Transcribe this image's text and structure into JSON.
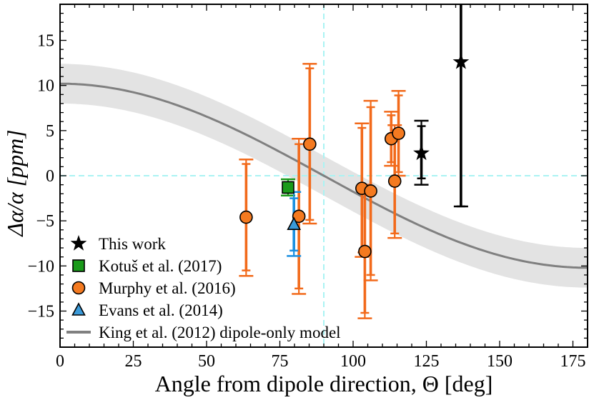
{
  "chart_data": {
    "type": "scatter",
    "xlabel": "Angle from dipole direction, Θ [deg]",
    "ylabel": "Δα/α [ppm]",
    "xlim": [
      0,
      180
    ],
    "ylim": [
      -19,
      19
    ],
    "xticks": [
      0,
      25,
      50,
      75,
      100,
      125,
      150,
      175
    ],
    "yticks": [
      -15,
      -10,
      -5,
      0,
      5,
      10,
      15
    ],
    "reference_lines": {
      "x": 90,
      "y": 0,
      "color": "#aaf3f3"
    },
    "dipole_model": {
      "name": "King et al. (2012) dipole-only model",
      "amplitude": 10.2,
      "band": 2.2,
      "color": "#808080",
      "band_color": "#e3e3e3"
    },
    "series": [
      {
        "name": "This work",
        "marker": "star",
        "color": "#000000",
        "points": [
          {
            "x": 123.3,
            "y": 2.5,
            "stat": [
              -0.3,
              5.5
            ],
            "tot": [
              -1.0,
              6.1
            ]
          },
          {
            "x": 136.8,
            "y": 12.6,
            "stat": [
              -3.4,
              19
            ],
            "tot": [
              -3.4,
              19
            ]
          }
        ]
      },
      {
        "name": "Kotuš et al. (2017)",
        "marker": "square",
        "color": "#1a9a1a",
        "points": [
          {
            "x": 77.8,
            "y": -1.3,
            "stat": [
              -1.9,
              -0.7
            ],
            "tot": [
              -2.2,
              -0.4
            ]
          }
        ]
      },
      {
        "name": "Murphy et al. (2016)",
        "marker": "circle",
        "color": "#f47a20",
        "points": [
          {
            "x": 63.5,
            "y": -4.6,
            "stat": [
              -10.5,
              1.3
            ],
            "tot": [
              -11.1,
              1.8
            ]
          },
          {
            "x": 81.5,
            "y": -4.5,
            "stat": [
              -12.5,
              3.5
            ],
            "tot": [
              -13.1,
              4.1
            ]
          },
          {
            "x": 85.2,
            "y": 3.5,
            "stat": [
              -4.9,
              11.9
            ],
            "tot": [
              -5.3,
              12.4
            ]
          },
          {
            "x": 103.0,
            "y": -1.4,
            "stat": [
              -8.5,
              5.3
            ],
            "tot": [
              -9.0,
              5.8
            ]
          },
          {
            "x": 104.0,
            "y": -8.4,
            "stat": [
              -15.2,
              -1.6
            ],
            "tot": [
              -15.8,
              -1.0
            ]
          },
          {
            "x": 106.0,
            "y": -1.7,
            "stat": [
              -11.0,
              7.6
            ],
            "tot": [
              -11.6,
              8.3
            ]
          },
          {
            "x": 113.0,
            "y": 4.1,
            "stat": [
              1.5,
              6.7
            ],
            "tot": [
              1.1,
              7.1
            ]
          },
          {
            "x": 114.2,
            "y": -0.6,
            "stat": [
              -6.4,
              5.1
            ],
            "tot": [
              -6.9,
              5.6
            ]
          },
          {
            "x": 115.5,
            "y": 4.7,
            "stat": [
              0.4,
              8.9
            ],
            "tot": [
              0.0,
              9.4
            ]
          }
        ]
      },
      {
        "name": "Evans et al. (2014)",
        "marker": "triangle",
        "color": "#3a9ad9",
        "points": [
          {
            "x": 79.8,
            "y": -5.4,
            "stat": [
              -8.3,
              -2.5
            ],
            "tot": [
              -8.9,
              -1.8
            ]
          }
        ]
      }
    ],
    "legend": {
      "position": "lower-left",
      "entries": [
        "This work",
        "Kotuš et al. (2017)",
        "Murphy et al. (2016)",
        "Evans et al. (2014)",
        "King et al. (2012) dipole-only model"
      ]
    }
  }
}
